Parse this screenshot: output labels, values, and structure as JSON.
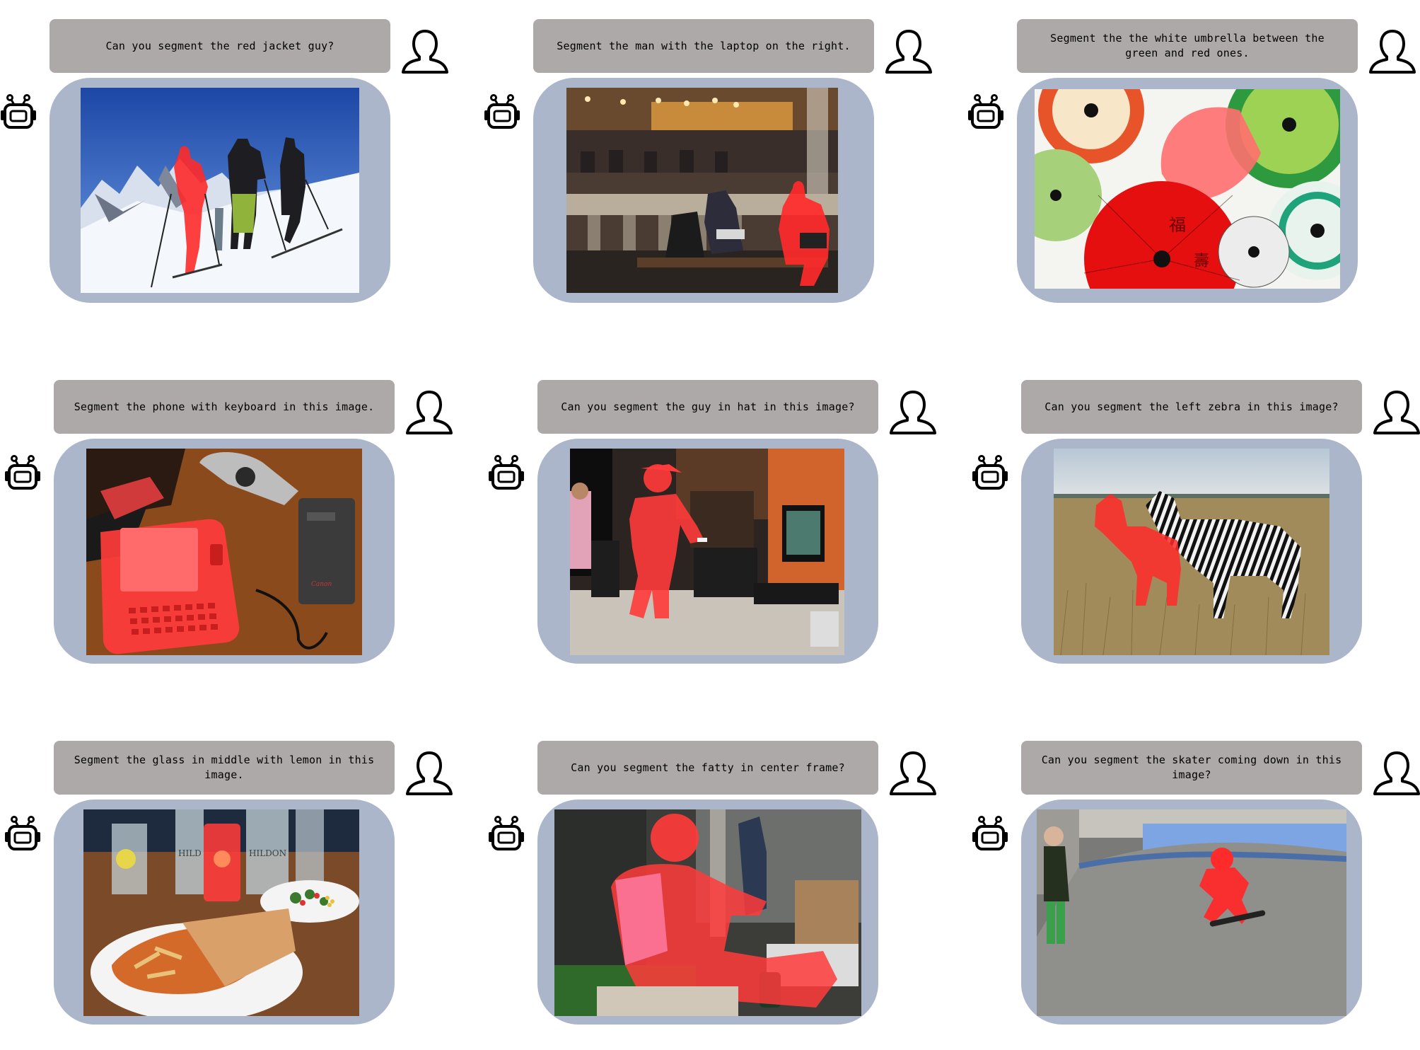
{
  "panels": [
    {
      "prompt": "Can you segment the red jacket guy?"
    },
    {
      "prompt": "Segment the man with the laptop on the right."
    },
    {
      "prompt": "Segment the the white umbrella between the green and red ones."
    },
    {
      "prompt": "Segment the phone with keyboard in this image."
    },
    {
      "prompt": "Can you segment the guy in hat in this image?"
    },
    {
      "prompt": "Can you segment the left zebra in this image?"
    },
    {
      "prompt": "Segment the glass in middle with lemon in this image."
    },
    {
      "prompt": "Can you segment the fatty in center frame?"
    },
    {
      "prompt": "Can you segment the skater coming down in this image?"
    }
  ],
  "photo_labels": {
    "phone_brand": "Canon",
    "bottle_brand_1": "HILD",
    "bottle_brand_2": "HILDON"
  },
  "colors": {
    "prompt_bg": "#ada9a8",
    "frame_bg": "#abb6ca",
    "mask": "#ff2a2a"
  }
}
